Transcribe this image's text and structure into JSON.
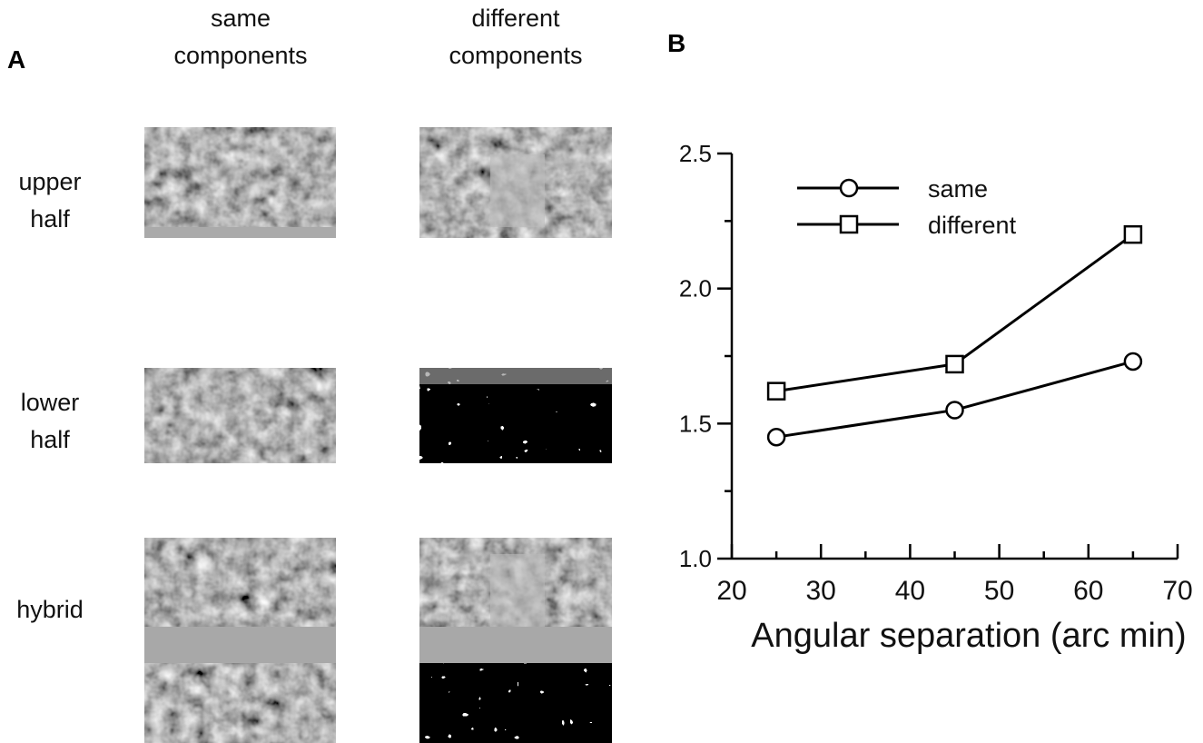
{
  "panel_a": {
    "label": "A",
    "columns": [
      "same components",
      "different components"
    ],
    "rows": [
      "upper half",
      "lower half",
      "hybrid"
    ]
  },
  "panel_b_label": "B",
  "chart_data": {
    "type": "line",
    "x_label": "Angular separation (arc min)",
    "x": [
      25,
      45,
      65
    ],
    "series": [
      {
        "name": "same",
        "marker": "circle",
        "color": "#000000",
        "values": [
          1.45,
          1.55,
          1.73
        ]
      },
      {
        "name": "different",
        "marker": "square",
        "color": "#000000",
        "values": [
          1.62,
          1.72,
          2.2
        ]
      }
    ],
    "xlim": [
      20,
      70
    ],
    "xticks": [
      20,
      30,
      40,
      50,
      60,
      70
    ],
    "xminorticks": [
      25,
      35,
      45,
      55,
      65
    ],
    "ylim": [
      1,
      2.5
    ],
    "yticks": [
      {
        "value": 1,
        "label": "1.0"
      },
      1.5,
      {
        "value": 2,
        "label": "2.0"
      },
      2.5
    ],
    "yminorticks": [
      1.25,
      1.75,
      2.25
    ],
    "legend": "upper left",
    "grid": false
  }
}
